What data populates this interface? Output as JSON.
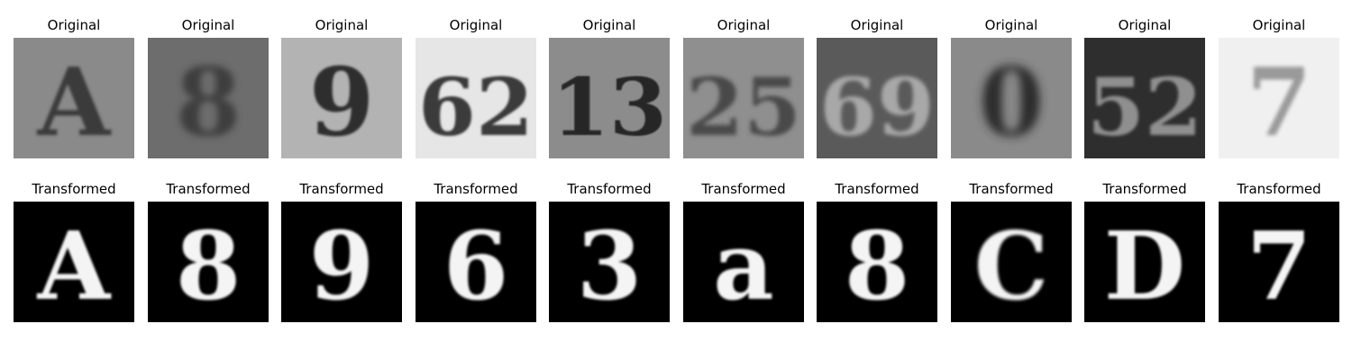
{
  "figure": {
    "row_titles": {
      "original": "Original",
      "transformed": "Transformed"
    },
    "samples": [
      {
        "original": {
          "bg": "#8a8a8a",
          "glyph": "A",
          "fg": "#3a3a3a",
          "blur": 1.5
        },
        "transformed": {
          "glyph": "A",
          "blur": 1.2
        }
      },
      {
        "original": {
          "bg": "#6d6d6d",
          "glyph": "8",
          "fg": "#3c3c3c",
          "blur": 4
        },
        "transformed": {
          "glyph": "8",
          "blur": 1.2
        }
      },
      {
        "original": {
          "bg": "#b3b3b3",
          "glyph": "9",
          "fg": "#2e2e2e",
          "blur": 1.2
        },
        "transformed": {
          "glyph": "9",
          "blur": 1.2
        }
      },
      {
        "original": {
          "bg": "#e6e6e6",
          "glyph": "62",
          "fg": "#3a3a3a",
          "blur": 1.4
        },
        "transformed": {
          "glyph": "6",
          "blur": 1.2
        }
      },
      {
        "original": {
          "bg": "#8c8c8c",
          "glyph": "13",
          "fg": "#262626",
          "blur": 0.8
        },
        "transformed": {
          "glyph": "3",
          "blur": 1.2
        }
      },
      {
        "original": {
          "bg": "#8f8f8f",
          "glyph": "25",
          "fg": "#4a4a4a",
          "blur": 2.5
        },
        "transformed": {
          "glyph": "a",
          "blur": 1.4
        }
      },
      {
        "original": {
          "bg": "#5a5a5a",
          "glyph": "69",
          "fg": "#a8a8a8",
          "blur": 2
        },
        "transformed": {
          "glyph": "8",
          "blur": 1.3
        }
      },
      {
        "original": {
          "bg": "#8a8a8a",
          "glyph": "0",
          "fg": "#2c2c2c",
          "blur": 5
        },
        "transformed": {
          "glyph": "C",
          "blur": 1.5
        }
      },
      {
        "original": {
          "bg": "#2e2e2e",
          "glyph": "52",
          "fg": "#8f8f8f",
          "blur": 1.6
        },
        "transformed": {
          "glyph": "D",
          "blur": 1.3
        }
      },
      {
        "original": {
          "bg": "#f0f0f0",
          "glyph": "7",
          "fg": "#9a9a9a",
          "blur": 2.2
        },
        "transformed": {
          "glyph": "7",
          "blur": 1.2
        }
      }
    ]
  }
}
